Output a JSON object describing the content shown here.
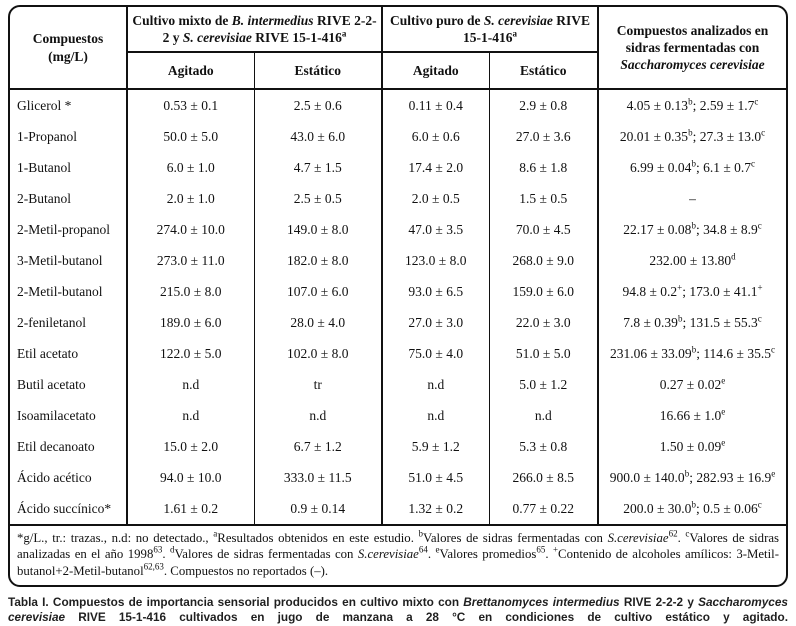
{
  "table": {
    "corner_header": {
      "line1": "Compuestos",
      "line2": "(mg/L)"
    },
    "group_headers": {
      "mixto": "Cultivo mixto de {i}B. intermedius{/i} RIVE 2-2-2 y {i}S. cerevisiae{/i} RIVE 15-1-416{sup}a{/sup}",
      "puro": "Cultivo puro de {i}S. cerevisiae{/i} RIVE 15-1-416{sup}a{/sup}",
      "sidras": "Compuestos analizados en sidras fermentadas con {i}Saccharomyces cerevisiae{/i}"
    },
    "sub_headers": {
      "mixto_agitado": "Agitado",
      "mixto_estatico": "Estático",
      "puro_agitado": "Agitado",
      "puro_estatico": "Estático"
    },
    "rows": [
      [
        "Glicerol *",
        "0.53 ± 0.1",
        "2.5 ± 0.6",
        "0.11 ± 0.4",
        "2.9 ± 0.8",
        "4.05 ± 0.13{sup}b{/sup}; 2.59 ± 1.7{sup}c{/sup}"
      ],
      [
        "1-Propanol",
        "50.0 ± 5.0",
        "43.0 ± 6.0",
        "6.0 ± 0.6",
        "27.0 ± 3.6",
        "20.01 ± 0.35{sup}b{/sup}; 27.3 ± 13.0{sup}c{/sup}"
      ],
      [
        "1-Butanol",
        "6.0 ± 1.0",
        "4.7 ± 1.5",
        "17.4 ± 2.0",
        "8.6 ± 1.8",
        "6.99 ± 0.04{sup}b{/sup}; 6.1 ± 0.7{sup}c{/sup}"
      ],
      [
        "2-Butanol",
        "2.0 ± 1.0",
        "2.5 ± 0.5",
        "2.0 ± 0.5",
        "1.5 ± 0.5",
        "–"
      ],
      [
        "2-Metil-propanol",
        "274.0 ± 10.0",
        "149.0 ± 8.0",
        "47.0 ± 3.5",
        "70.0 ± 4.5",
        "22.17 ± 0.08{sup}b{/sup}; 34.8 ± 8.9{sup}c{/sup}"
      ],
      [
        "3-Metil-butanol",
        "273.0 ± 11.0",
        "182.0 ± 8.0",
        "123.0 ± 8.0",
        "268.0 ± 9.0",
        "232.00 ± 13.80{sup}d{/sup}"
      ],
      [
        "2-Metil-butanol",
        "215.0 ± 8.0",
        "107.0 ± 6.0",
        "93.0 ± 6.5",
        "159.0 ± 6.0",
        "94.8 ± 0.2{sup}+{/sup}; 173.0 ± 41.1{sup}+{/sup}"
      ],
      [
        "2-feniletanol",
        "189.0 ± 6.0",
        "28.0 ± 4.0",
        "27.0 ± 3.0",
        "22.0 ± 3.0",
        "7.8 ± 0.39{sup}b{/sup}; 131.5 ± 55.3{sup}c{/sup}"
      ],
      [
        "Etil acetato",
        "122.0 ± 5.0",
        "102.0 ± 8.0",
        "75.0 ± 4.0",
        "51.0 ± 5.0",
        "231.06 ± 33.09{sup}b{/sup}; 114.6 ± 35.5{sup}c{/sup}"
      ],
      [
        "Butil acetato",
        "n.d",
        "tr",
        "n.d",
        "5.0 ± 1.2",
        "0.27 ± 0.02{sup}e{/sup}"
      ],
      [
        "Isoamilacetato",
        "n.d",
        "n.d",
        "n.d",
        "n.d",
        "16.66 ± 1.0{sup}e{/sup}"
      ],
      [
        "Etil decanoato",
        "15.0 ± 2.0",
        "6.7 ± 1.2",
        "5.9 ± 1.2",
        "5.3 ± 0.8",
        "1.50 ± 0.09{sup}e{/sup}"
      ],
      [
        "Ácido acético",
        "94.0 ± 10.0",
        "333.0 ± 11.5",
        "51.0 ± 4.5",
        "266.0 ± 8.5",
        "900.0 ± 140.0{sup}b{/sup}; 282.93 ± 16.9{sup}e{/sup}"
      ],
      [
        "Ácido succínico*",
        "1.61 ± 0.2",
        "0.9 ± 0.14",
        "1.32 ± 0.2",
        "0.77 ± 0.22",
        "200.0 ± 30.0{sup}b{/sup}; 0.5 ± 0.06{sup}c{/sup}"
      ]
    ],
    "footnote": "*g/L., tr.: trazas., n.d: no detectado., {sup}a{/sup}Resultados obtenidos en este estudio. {sup}b{/sup}Valores de sidras fermentadas con {i}S.cerevisiae{/i}{sup}62{/sup}. {sup}c{/sup}Valores de sidras analizadas en el año 1998{sup}63{/sup}. {sup}d{/sup}Valores de sidras fermentadas con {i}S.cerevisiae{/i}{sup}64{/sup}. {sup}e{/sup}Valores promedios{sup}65{/sup}. {sup}+{/sup}Contenido de alcoholes amílicos: 3-Metil-butanol+2-Metil-butanol{sup}62,63{/sup}. Compuestos no reportados (–)."
  },
  "caption": "Tabla I. Compuestos de importancia sensorial producidos en cultivo mixto con {i}Brettanomyces intermedius{/i} RIVE 2-2-2 y {i}Saccharomyces cerevisiae{/i} RIVE 15-1-416 cultivados en jugo de manzana a 28 °C en condiciones de cultivo estático y agitado.",
  "colors": {
    "border": "#111111",
    "text": "#111111",
    "caption_text": "#1f1f1f",
    "background": "#ffffff"
  }
}
